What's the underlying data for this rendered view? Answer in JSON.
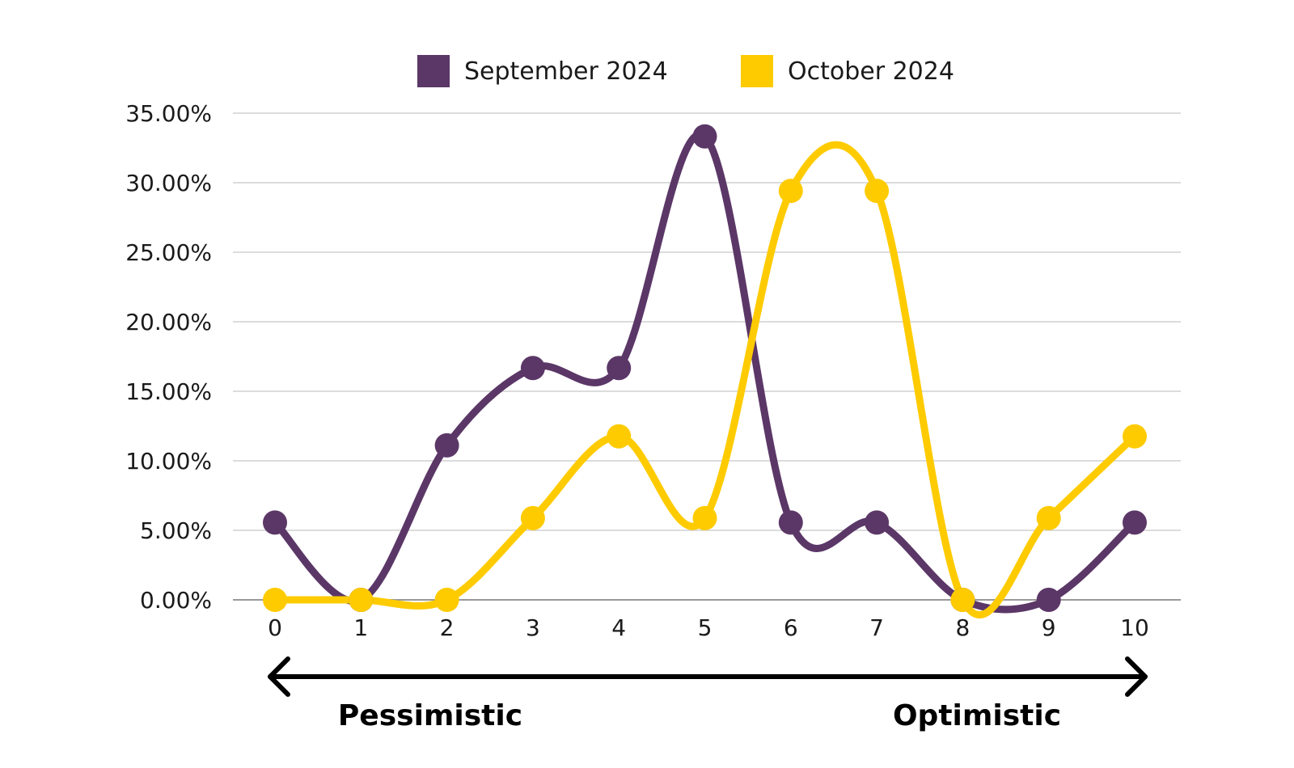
{
  "chart_data": {
    "type": "line",
    "smooth": true,
    "categories": [
      "0",
      "1",
      "2",
      "3",
      "4",
      "5",
      "6",
      "7",
      "8",
      "9",
      "10"
    ],
    "series": [
      {
        "name": "September 2024",
        "color": "#5b3767",
        "values": [
          5.56,
          0,
          11.11,
          16.67,
          16.67,
          33.33,
          5.56,
          5.56,
          0,
          0,
          5.56
        ]
      },
      {
        "name": "October 2024",
        "color": "#fecb00",
        "values": [
          0,
          0,
          0,
          5.88,
          11.76,
          5.88,
          29.41,
          29.41,
          0,
          5.88,
          11.76
        ]
      }
    ],
    "y_ticks": [
      "0.00%",
      "5.00%",
      "10.00%",
      "15.00%",
      "20.00%",
      "25.00%",
      "30.00%",
      "35.00%"
    ],
    "ylim": [
      0,
      35
    ],
    "grid": true,
    "legend_position": "top-center"
  },
  "scale": {
    "left_label": "Pessimistic",
    "right_label": "Optimistic"
  }
}
